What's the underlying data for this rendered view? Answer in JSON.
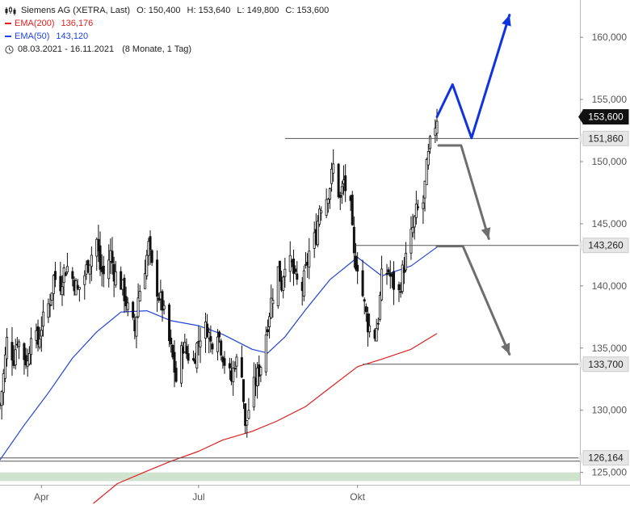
{
  "legend": {
    "instrument": "Siemens AG (XETRA, Last)",
    "open": "O: 150,400",
    "high": "H: 153,640",
    "low": "L: 149,800",
    "close": "C: 153,600",
    "ema200_label": "EMA(200)",
    "ema200_value": "136,176",
    "ema50_label": "EMA(50)",
    "ema50_value": "143,120",
    "date_range": "08.03.2021 - 16.11.2021",
    "period": "(8 Monate, 1 Tag)"
  },
  "colors": {
    "ema200": "#e02020",
    "ema50": "#2244dd",
    "candle": "#111111",
    "level_line": "#555555",
    "projection_up": "#1033e0",
    "projection_down": "#6e6e6e",
    "support_zone": "#cfe3cf",
    "price_tag": "#111111"
  },
  "chart_data": {
    "type": "candlestick",
    "ylim": [
      124000,
      163000
    ],
    "y_ticks": [
      {
        "value": 125000,
        "label": "125,000"
      },
      {
        "value": 130000,
        "label": "130,000"
      },
      {
        "value": 135000,
        "label": "135,000"
      },
      {
        "value": 140000,
        "label": "140,000"
      },
      {
        "value": 145000,
        "label": "145,000"
      },
      {
        "value": 150000,
        "label": "150,000"
      },
      {
        "value": 155000,
        "label": "155,000"
      },
      {
        "value": 160000,
        "label": "160,000"
      }
    ],
    "x_ticks": [
      {
        "date": "2021-04-01",
        "label": "Apr"
      },
      {
        "date": "2021-07-01",
        "label": "Jul"
      },
      {
        "date": "2021-10-01",
        "label": "Okt"
      }
    ],
    "date_range": [
      "2021-03-08",
      "2021-11-16"
    ],
    "projection_end": "2022-01-20",
    "levels": [
      {
        "value": 153600,
        "label": "153,600",
        "style": "current"
      },
      {
        "value": 151860,
        "label": "151,860",
        "style": "resistance",
        "from": "2021-08-20"
      },
      {
        "value": 143260,
        "label": "143,260",
        "style": "support",
        "from": "2021-09-30"
      },
      {
        "value": 133700,
        "label": "133,700",
        "style": "support",
        "from": "2021-10-04"
      },
      {
        "value": 126164,
        "label": "126,164",
        "style": "support",
        "from": "2021-03-08"
      }
    ],
    "support_zone": [
      124300,
      125000
    ],
    "closes": [
      [
        "2021-03-08",
        130400
      ],
      [
        "2021-03-10",
        132800
      ],
      [
        "2021-03-12",
        135600
      ],
      [
        "2021-03-16",
        134200
      ],
      [
        "2021-03-18",
        135800
      ],
      [
        "2021-03-22",
        134300
      ],
      [
        "2021-03-24",
        133800
      ],
      [
        "2021-03-26",
        136500
      ],
      [
        "2021-03-30",
        135400
      ],
      [
        "2021-04-01",
        136800
      ],
      [
        "2021-04-06",
        138900
      ],
      [
        "2021-04-08",
        140700
      ],
      [
        "2021-04-12",
        140200
      ],
      [
        "2021-04-14",
        141200
      ],
      [
        "2021-04-16",
        141500
      ],
      [
        "2021-04-20",
        140300
      ],
      [
        "2021-04-22",
        139600
      ],
      [
        "2021-04-26",
        140900
      ],
      [
        "2021-04-28",
        141800
      ],
      [
        "2021-05-03",
        143700
      ],
      [
        "2021-05-05",
        141400
      ],
      [
        "2021-05-07",
        140900
      ],
      [
        "2021-05-11",
        142600
      ],
      [
        "2021-05-13",
        141100
      ],
      [
        "2021-05-17",
        140200
      ],
      [
        "2021-05-19",
        139300
      ],
      [
        "2021-05-21",
        138100
      ],
      [
        "2021-05-25",
        136400
      ],
      [
        "2021-05-27",
        139100
      ],
      [
        "2021-05-31",
        141600
      ],
      [
        "2021-06-02",
        143200
      ],
      [
        "2021-06-04",
        141400
      ],
      [
        "2021-06-08",
        139200
      ],
      [
        "2021-06-10",
        138400
      ],
      [
        "2021-06-14",
        135500
      ],
      [
        "2021-06-16",
        134100
      ],
      [
        "2021-06-18",
        132400
      ],
      [
        "2021-06-22",
        135300
      ],
      [
        "2021-06-24",
        134600
      ],
      [
        "2021-06-28",
        133900
      ],
      [
        "2021-06-30",
        135200
      ],
      [
        "2021-07-02",
        136100
      ],
      [
        "2021-07-06",
        136700
      ],
      [
        "2021-07-08",
        135400
      ],
      [
        "2021-07-12",
        136600
      ],
      [
        "2021-07-14",
        135100
      ],
      [
        "2021-07-16",
        133900
      ],
      [
        "2021-07-20",
        132400
      ],
      [
        "2021-07-22",
        134000
      ],
      [
        "2021-07-26",
        133300
      ],
      [
        "2021-07-28",
        128400
      ],
      [
        "2021-07-30",
        130100
      ],
      [
        "2021-08-02",
        131900
      ],
      [
        "2021-08-04",
        132800
      ],
      [
        "2021-08-06",
        133700
      ],
      [
        "2021-08-10",
        137100
      ],
      [
        "2021-08-12",
        138800
      ],
      [
        "2021-08-16",
        141300
      ],
      [
        "2021-08-18",
        140100
      ],
      [
        "2021-08-20",
        142100
      ],
      [
        "2021-08-24",
        141600
      ],
      [
        "2021-08-26",
        140400
      ],
      [
        "2021-08-30",
        139800
      ],
      [
        "2021-09-01",
        141200
      ],
      [
        "2021-09-03",
        142700
      ],
      [
        "2021-09-07",
        144100
      ],
      [
        "2021-09-09",
        146400
      ],
      [
        "2021-09-13",
        147200
      ],
      [
        "2021-09-15",
        148100
      ],
      [
        "2021-09-17",
        149600
      ],
      [
        "2021-09-21",
        146900
      ],
      [
        "2021-09-23",
        148400
      ],
      [
        "2021-09-27",
        146100
      ],
      [
        "2021-09-29",
        142200
      ],
      [
        "2021-10-01",
        141800
      ],
      [
        "2021-10-05",
        138400
      ],
      [
        "2021-10-07",
        136900
      ],
      [
        "2021-10-11",
        136100
      ],
      [
        "2021-10-13",
        137400
      ],
      [
        "2021-10-15",
        140600
      ],
      [
        "2021-10-19",
        141200
      ],
      [
        "2021-10-21",
        140300
      ],
      [
        "2021-10-25",
        139400
      ],
      [
        "2021-10-27",
        141100
      ],
      [
        "2021-10-29",
        142200
      ],
      [
        "2021-11-02",
        144600
      ],
      [
        "2021-11-04",
        145900
      ],
      [
        "2021-11-08",
        146700
      ],
      [
        "2021-11-10",
        149400
      ],
      [
        "2021-11-12",
        151300
      ],
      [
        "2021-11-16",
        153600
      ]
    ],
    "ema200": [
      [
        "2021-05-01",
        122500
      ],
      [
        "2021-05-15",
        124100
      ],
      [
        "2021-06-01",
        125100
      ],
      [
        "2021-06-15",
        125900
      ],
      [
        "2021-07-01",
        126700
      ],
      [
        "2021-07-15",
        127600
      ],
      [
        "2021-08-01",
        128300
      ],
      [
        "2021-08-15",
        129100
      ],
      [
        "2021-09-01",
        130300
      ],
      [
        "2021-09-15",
        131800
      ],
      [
        "2021-10-01",
        133500
      ],
      [
        "2021-10-15",
        134100
      ],
      [
        "2021-11-01",
        134900
      ],
      [
        "2021-11-16",
        136176
      ]
    ],
    "ema50": [
      [
        "2021-03-08",
        126000
      ],
      [
        "2021-03-22",
        128800
      ],
      [
        "2021-04-05",
        131400
      ],
      [
        "2021-04-19",
        134200
      ],
      [
        "2021-05-03",
        136300
      ],
      [
        "2021-05-17",
        137900
      ],
      [
        "2021-06-01",
        138000
      ],
      [
        "2021-06-15",
        137200
      ],
      [
        "2021-07-01",
        136800
      ],
      [
        "2021-07-15",
        136100
      ],
      [
        "2021-08-01",
        134900
      ],
      [
        "2021-08-10",
        134600
      ],
      [
        "2021-08-20",
        135900
      ],
      [
        "2021-09-01",
        138100
      ],
      [
        "2021-09-15",
        140500
      ],
      [
        "2021-10-01",
        142300
      ],
      [
        "2021-10-15",
        140800
      ],
      [
        "2021-11-01",
        141600
      ],
      [
        "2021-11-16",
        143120
      ]
    ],
    "projection_up": [
      [
        "2021-11-16",
        153600
      ],
      [
        "2021-11-25",
        156200
      ],
      [
        "2021-12-06",
        151900
      ],
      [
        "2021-12-28",
        161800
      ]
    ],
    "projection_down_1": [
      [
        "2021-11-17",
        151300
      ],
      [
        "2021-11-30",
        151300
      ],
      [
        "2021-12-16",
        143800
      ]
    ],
    "projection_down_2": [
      [
        "2021-11-16",
        143200
      ],
      [
        "2021-12-01",
        143200
      ],
      [
        "2021-12-28",
        134500
      ]
    ]
  }
}
